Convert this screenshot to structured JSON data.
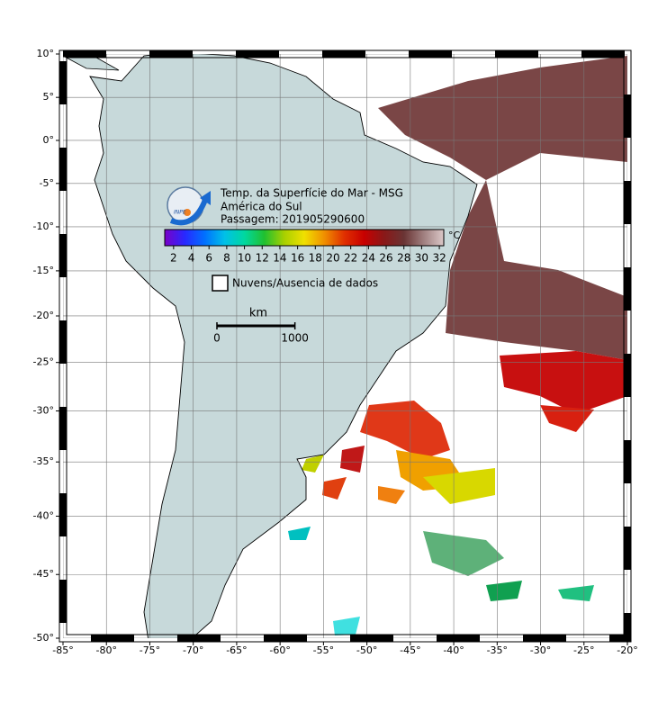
{
  "map": {
    "title_lines": [
      "Temp. da Superfície do Mar - MSG",
      "América do Sul",
      "Passagem: 201905290600"
    ],
    "lon_range": [
      -85,
      -20
    ],
    "lat_range": [
      -50,
      10
    ],
    "lon_ticks": [
      {
        "value": -85,
        "label": "-85°"
      },
      {
        "value": -80,
        "label": "-80°"
      },
      {
        "value": -75,
        "label": "-75°"
      },
      {
        "value": -70,
        "label": "-70°"
      },
      {
        "value": -65,
        "label": "-65°"
      },
      {
        "value": -60,
        "label": "-60°"
      },
      {
        "value": -55,
        "label": "-55°"
      },
      {
        "value": -50,
        "label": "-50°"
      },
      {
        "value": -45,
        "label": "-45°"
      },
      {
        "value": -40,
        "label": "-40°"
      },
      {
        "value": -35,
        "label": "-35°"
      },
      {
        "value": -30,
        "label": "-30°"
      },
      {
        "value": -25,
        "label": "-25°"
      },
      {
        "value": -20,
        "label": "-20°"
      }
    ],
    "lat_ticks": [
      {
        "value": 10,
        "label": "10°"
      },
      {
        "value": 5,
        "label": "5°"
      },
      {
        "value": 0,
        "label": "0°"
      },
      {
        "value": -5,
        "label": "-5°"
      },
      {
        "value": -10,
        "label": "-10°"
      },
      {
        "value": -15,
        "label": "-15°"
      },
      {
        "value": -20,
        "label": "-20°"
      },
      {
        "value": -25,
        "label": "-25°"
      },
      {
        "value": -30,
        "label": "-30°"
      },
      {
        "value": -35,
        "label": "-35°"
      },
      {
        "value": -40,
        "label": "-40°"
      },
      {
        "value": -45,
        "label": "-45°"
      },
      {
        "value": -50,
        "label": "-50°"
      }
    ],
    "grid": true,
    "colorbar": {
      "unit": "°C",
      "range": [
        1,
        32.5
      ],
      "ticks": [
        2,
        4,
        6,
        8,
        10,
        12,
        14,
        16,
        18,
        20,
        22,
        24,
        26,
        28,
        30,
        32
      ],
      "colors": [
        "#7a00c8",
        "#2828ff",
        "#0070ff",
        "#00c0e8",
        "#00d8a0",
        "#20c030",
        "#a8d000",
        "#f0e000",
        "#f09000",
        "#e03000",
        "#c80000",
        "#8a1818",
        "#6a3434",
        "#a08080",
        "#dcc8c8"
      ]
    },
    "legend": "Nuvens/Ausencia de dados",
    "scale_bar": {
      "unit": "km",
      "ticks": [
        0,
        1000
      ]
    }
  }
}
